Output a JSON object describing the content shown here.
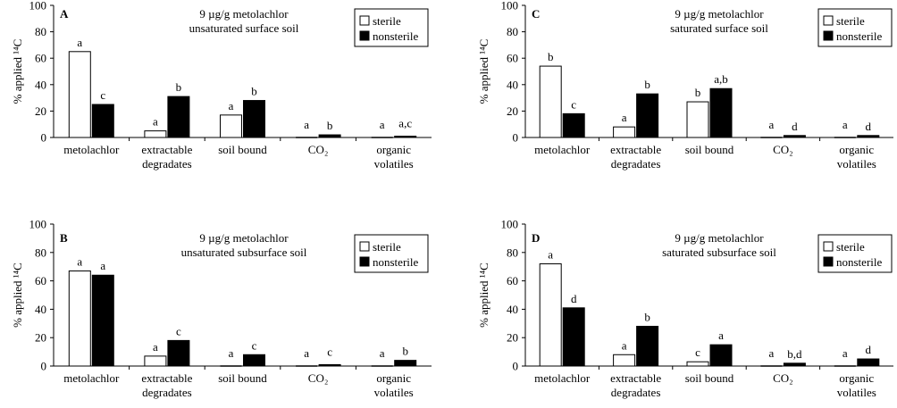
{
  "chart_data": [
    {
      "type": "bar",
      "panel": "A",
      "title": [
        "9 µg/g metolachlor",
        "unsaturated surface soil"
      ],
      "ylabel": "% applied ¹⁴C",
      "ylim": [
        0,
        100
      ],
      "yticks": [
        0,
        20,
        40,
        60,
        80,
        100
      ],
      "legend_position": "top-right",
      "categories": [
        [
          "metolachlor"
        ],
        [
          "extractable",
          "degradates"
        ],
        [
          "soil bound"
        ],
        [
          "CO₂"
        ],
        [
          "organic",
          "volatiles"
        ]
      ],
      "series": [
        {
          "name": "sterile",
          "fill": "#ffffff",
          "values": [
            65,
            5,
            17,
            0,
            0
          ],
          "labels": [
            "a",
            "a",
            "a",
            "a",
            "a"
          ]
        },
        {
          "name": "nonsterile",
          "fill": "#000000",
          "values": [
            25,
            31,
            28,
            2,
            1
          ],
          "labels": [
            "c",
            "b",
            "b",
            "b",
            "a,c"
          ]
        }
      ]
    },
    {
      "type": "bar",
      "panel": "C",
      "title": [
        "9 µg/g metolachlor",
        "saturated surface soil"
      ],
      "ylabel": "% applied ¹⁴C",
      "ylim": [
        0,
        100
      ],
      "yticks": [
        0,
        20,
        40,
        60,
        80,
        100
      ],
      "legend_position": "top-right",
      "categories": [
        [
          "metolachlor"
        ],
        [
          "extractable",
          "degradates"
        ],
        [
          "soil bound"
        ],
        [
          "CO₂"
        ],
        [
          "organic",
          "volatiles"
        ]
      ],
      "series": [
        {
          "name": "sterile",
          "fill": "#ffffff",
          "values": [
            54,
            8,
            27,
            0,
            0
          ],
          "labels": [
            "b",
            "a",
            "b",
            "a",
            "a"
          ]
        },
        {
          "name": "nonsterile",
          "fill": "#000000",
          "values": [
            18,
            33,
            37,
            1.5,
            1.5
          ],
          "labels": [
            "c",
            "b",
            "a,b",
            "d",
            "d"
          ]
        }
      ]
    },
    {
      "type": "bar",
      "panel": "B",
      "title": [
        "9 µg/g metolachlor",
        "unsaturated subsurface soil"
      ],
      "ylabel": "% applied ¹⁴C",
      "ylim": [
        0,
        100
      ],
      "yticks": [
        0,
        20,
        40,
        60,
        80,
        100
      ],
      "legend_position": "top-right",
      "categories": [
        [
          "metolachlor"
        ],
        [
          "extractable",
          "degradates"
        ],
        [
          "soil bound"
        ],
        [
          "CO₂"
        ],
        [
          "organic",
          "volatiles"
        ]
      ],
      "series": [
        {
          "name": "sterile",
          "fill": "#ffffff",
          "values": [
            67,
            7,
            0,
            0,
            0
          ],
          "labels": [
            "a",
            "a",
            "a",
            "a",
            "a"
          ]
        },
        {
          "name": "nonsterile",
          "fill": "#000000",
          "values": [
            64,
            18,
            8,
            1,
            4
          ],
          "labels": [
            "a",
            "c",
            "c",
            "c",
            "b"
          ]
        }
      ]
    },
    {
      "type": "bar",
      "panel": "D",
      "title": [
        "9 µg/g metolachlor",
        "saturated subsurface soil"
      ],
      "ylabel": "% applied ¹⁴C",
      "ylim": [
        0,
        100
      ],
      "yticks": [
        0,
        20,
        40,
        60,
        80,
        100
      ],
      "legend_position": "top-right",
      "categories": [
        [
          "metolachlor"
        ],
        [
          "extractable",
          "degradates"
        ],
        [
          "soil bound"
        ],
        [
          "CO₂"
        ],
        [
          "organic",
          "volatiles"
        ]
      ],
      "series": [
        {
          "name": "sterile",
          "fill": "#ffffff",
          "values": [
            72,
            8,
            3,
            0,
            0
          ],
          "labels": [
            "a",
            "a",
            "c",
            "a",
            "a"
          ]
        },
        {
          "name": "nonsterile",
          "fill": "#000000",
          "values": [
            41,
            28,
            15,
            2,
            5
          ],
          "labels": [
            "d",
            "b",
            "a",
            "b,d",
            "d"
          ]
        }
      ]
    }
  ]
}
